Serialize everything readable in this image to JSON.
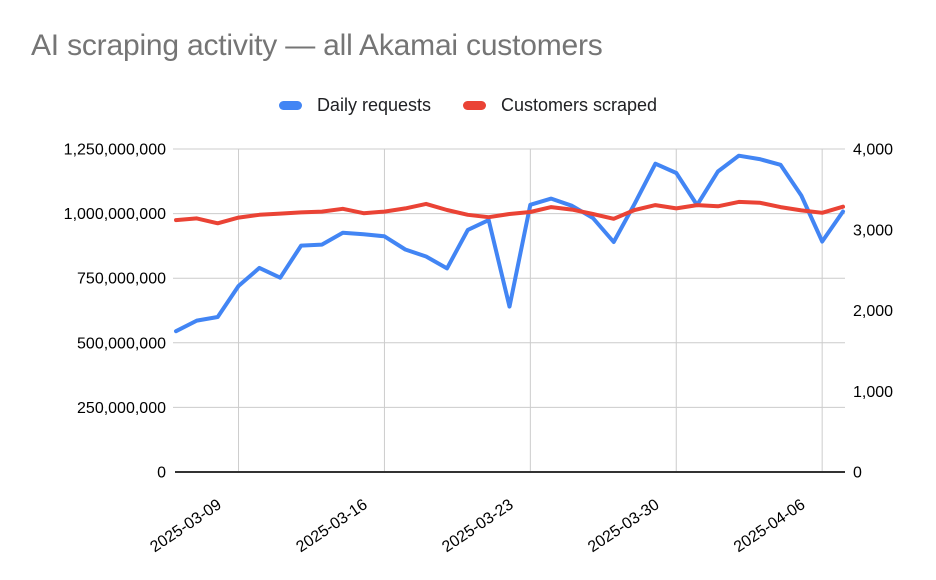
{
  "chart_data": {
    "type": "line",
    "title": "AI scraping activity — all Akamai customers",
    "title_color": "#757575",
    "legend_position": "top",
    "grid": true,
    "x": [
      "2025-03-06",
      "2025-03-07",
      "2025-03-08",
      "2025-03-09",
      "2025-03-10",
      "2025-03-11",
      "2025-03-12",
      "2025-03-13",
      "2025-03-14",
      "2025-03-15",
      "2025-03-16",
      "2025-03-17",
      "2025-03-18",
      "2025-03-19",
      "2025-03-20",
      "2025-03-21",
      "2025-03-22",
      "2025-03-23",
      "2025-03-24",
      "2025-03-25",
      "2025-03-26",
      "2025-03-27",
      "2025-03-28",
      "2025-03-29",
      "2025-03-30",
      "2025-03-31",
      "2025-04-01",
      "2025-04-02",
      "2025-04-03",
      "2025-04-04",
      "2025-04-05",
      "2025-04-06",
      "2025-04-07"
    ],
    "x_tick_labels": [
      "2025-03-09",
      "2025-03-16",
      "2025-03-23",
      "2025-03-30",
      "2025-04-06"
    ],
    "left_axis": {
      "range": [
        0,
        1250000000
      ],
      "tick_values": [
        0,
        250000000,
        500000000,
        750000000,
        1000000000,
        1250000000
      ],
      "tick_labels": [
        "0",
        "250,000,000",
        "500,000,000",
        "750,000,000",
        "1,000,000,000",
        "1,250,000,000"
      ]
    },
    "right_axis": {
      "range": [
        0,
        4000
      ],
      "tick_values": [
        0,
        1000,
        2000,
        3000,
        4000
      ],
      "tick_labels": [
        "0",
        "1,000",
        "2,000",
        "3,000",
        "4,000"
      ]
    },
    "series": [
      {
        "name": "Daily requests",
        "axis": "left",
        "color": "#4285F4",
        "values": [
          545000000,
          586000000,
          600000000,
          720000000,
          790000000,
          752000000,
          876000000,
          880000000,
          926000000,
          920000000,
          912000000,
          861000000,
          834000000,
          788000000,
          937000000,
          975000000,
          640000000,
          1034000000,
          1058000000,
          1030000000,
          983000000,
          890000000,
          1038000000,
          1193000000,
          1157000000,
          1033000000,
          1163000000,
          1224000000,
          1211000000,
          1189000000,
          1070000000,
          892000000,
          1008000000
        ]
      },
      {
        "name": "Customers scraped",
        "axis": "right",
        "color": "#EA4335",
        "values": [
          3120,
          3140,
          3080,
          3150,
          3185,
          3200,
          3215,
          3225,
          3260,
          3205,
          3225,
          3265,
          3320,
          3245,
          3185,
          3155,
          3195,
          3220,
          3280,
          3250,
          3195,
          3135,
          3245,
          3305,
          3265,
          3305,
          3290,
          3345,
          3335,
          3280,
          3240,
          3210,
          3285
        ]
      }
    ]
  }
}
